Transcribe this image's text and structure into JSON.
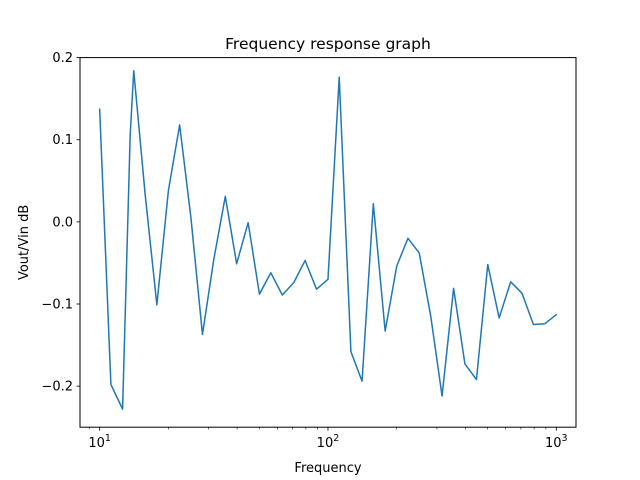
{
  "chart_data": {
    "type": "line",
    "title": "Frequency response graph",
    "xlabel": "Frequency",
    "ylabel": "Vout/Vin dB",
    "xscale": "log",
    "xlim": [
      8.2,
      1220
    ],
    "ylim": [
      -0.25,
      0.2
    ],
    "grid": false,
    "legend": "none",
    "xticks": [
      {
        "value": 10,
        "base": "10",
        "exp": "1"
      },
      {
        "value": 100,
        "base": "10",
        "exp": "2"
      },
      {
        "value": 1000,
        "base": "10",
        "exp": "3"
      }
    ],
    "yticks": [
      {
        "value": 0.2,
        "label": "0.2"
      },
      {
        "value": 0.1,
        "label": "0.1"
      },
      {
        "value": 0.0,
        "label": "0.0"
      },
      {
        "value": -0.1,
        "label": "−0.1"
      },
      {
        "value": -0.2,
        "label": "−0.2"
      }
    ],
    "line_color": "#1f77b4",
    "series": [
      {
        "x": [
          10.0,
          11.2,
          12.6,
          13.6,
          14.1,
          15.8,
          17.8,
          20.0,
          22.4,
          25.1,
          28.2,
          31.6,
          35.5,
          39.8,
          44.7,
          50.1,
          56.2,
          63.1,
          70.8,
          79.4,
          89.1,
          100.0,
          112.0,
          126.0,
          141.0,
          158.0,
          178.0,
          200.0,
          224.0,
          251.0,
          282.0,
          316.0,
          355.0,
          398.0,
          447.0,
          501.0,
          562.0,
          631.0,
          708.0,
          794.0,
          891.0,
          1000.0
        ],
        "y": [
          0.137,
          -0.198,
          -0.228,
          0.105,
          0.184,
          0.035,
          -0.101,
          0.038,
          0.118,
          0.005,
          -0.137,
          -0.046,
          0.031,
          -0.051,
          -0.001,
          -0.088,
          -0.062,
          -0.089,
          -0.074,
          -0.047,
          -0.082,
          -0.07,
          0.176,
          -0.158,
          -0.194,
          0.022,
          -0.133,
          -0.054,
          -0.02,
          -0.038,
          -0.115,
          -0.212,
          -0.081,
          -0.173,
          -0.192,
          -0.052,
          -0.117,
          -0.073,
          -0.087,
          -0.125,
          -0.124,
          -0.113
        ]
      }
    ]
  }
}
